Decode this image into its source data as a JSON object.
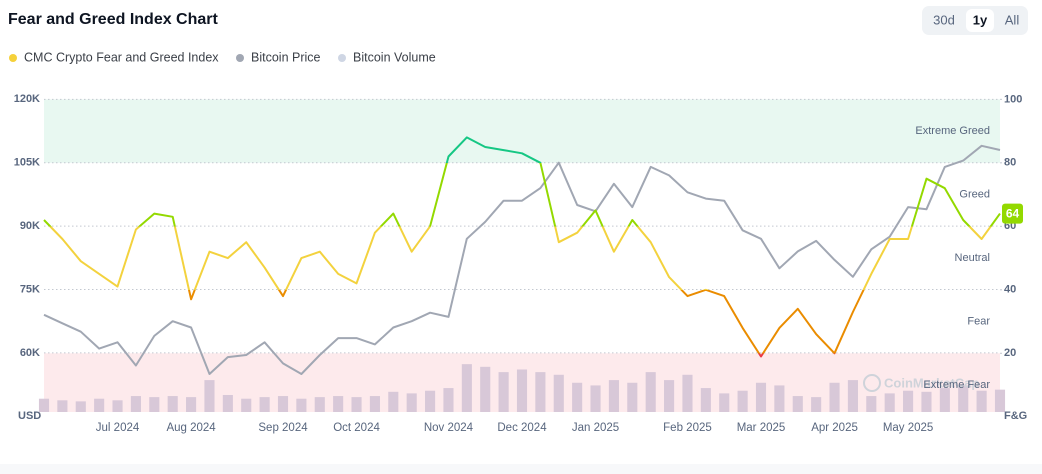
{
  "title": "Fear and Greed Index Chart",
  "buttons": [
    "30d",
    "1y",
    "All"
  ],
  "active_button": "1y",
  "chart_data": {
    "type": "line",
    "categories": [
      null,
      null,
      null,
      null,
      "Jul 2024",
      null,
      null,
      null,
      "Aug 2024",
      null,
      null,
      null,
      null,
      "Sep 2024",
      null,
      null,
      null,
      "Oct 2024",
      null,
      null,
      null,
      null,
      "Nov 2024",
      null,
      null,
      null,
      "Dec 2024",
      null,
      null,
      null,
      "Jan 2025",
      null,
      null,
      null,
      null,
      "Feb 2025",
      null,
      null,
      null,
      "Mar 2025",
      null,
      null,
      null,
      "Apr 2025",
      null,
      null,
      null,
      "May 2025",
      null,
      null,
      null,
      null,
      null
    ],
    "series": [
      {
        "name": "CMC Crypto Fear and Greed Index",
        "color": "#f5d13a",
        "axis": "y2",
        "values": [
          62,
          56,
          49,
          45,
          41,
          59,
          64,
          63,
          37,
          52,
          50,
          55,
          47,
          38,
          50,
          52,
          45,
          42,
          58,
          64,
          52,
          60,
          82,
          88,
          85,
          84,
          83,
          80,
          55,
          58,
          65,
          52,
          62,
          55,
          44,
          38,
          40,
          38,
          28,
          19,
          28,
          34,
          26,
          20,
          33,
          45,
          56,
          56,
          75,
          72,
          62,
          56,
          64
        ]
      },
      {
        "name": "Bitcoin Price",
        "color": "#a1a7b3",
        "axis": "y",
        "values": [
          69000,
          67000,
          65000,
          61000,
          62500,
          57000,
          64000,
          67500,
          66000,
          55000,
          59000,
          59500,
          62500,
          57500,
          55000,
          59500,
          63500,
          63500,
          62000,
          66000,
          67500,
          69500,
          68500,
          87000,
          91000,
          96000,
          96000,
          99000,
          105000,
          95000,
          93500,
          100000,
          94500,
          104000,
          102000,
          98000,
          96500,
          96000,
          89000,
          87000,
          80000,
          84000,
          86500,
          82000,
          78000,
          84500,
          87500,
          94500,
          94000,
          104000,
          105500,
          109000,
          108000
        ]
      },
      {
        "name": "Bitcoin Volume",
        "color": "#cfd6e4",
        "bar_color": "#d8c8d8",
        "axis": "y3",
        "values": [
          25,
          22,
          20,
          25,
          22,
          30,
          28,
          30,
          28,
          60,
          32,
          25,
          28,
          30,
          25,
          28,
          30,
          28,
          30,
          38,
          35,
          40,
          45,
          90,
          85,
          75,
          80,
          75,
          70,
          55,
          50,
          60,
          55,
          75,
          60,
          70,
          45,
          35,
          40,
          55,
          50,
          30,
          28,
          55,
          60,
          30,
          35,
          40,
          38,
          45,
          50,
          40,
          42
        ]
      }
    ],
    "ylim": [
      46000,
      121500
    ],
    "yticks": [
      {
        "value": 60000,
        "label": "60K"
      },
      {
        "value": 75000,
        "label": "75K"
      },
      {
        "value": 90000,
        "label": "90K"
      },
      {
        "value": 105000,
        "label": "105K"
      },
      {
        "value": 120000,
        "label": "120K"
      }
    ],
    "y2lim": [
      1.5,
      102
    ],
    "y2ticks": [
      20,
      40,
      60,
      80,
      100
    ],
    "y3lim": [
      0,
      600
    ],
    "y_label": "USD",
    "y2_label": "F&G",
    "grid": true,
    "zones": [
      {
        "name": "Extreme Fear",
        "range": [
          0,
          20
        ],
        "color": "#ea3943",
        "background": "#fdeaec"
      },
      {
        "name": "Fear",
        "range": [
          20,
          40
        ],
        "color": "#ea8c00"
      },
      {
        "name": "Neutral",
        "range": [
          40,
          60
        ],
        "color": "#f3d23e"
      },
      {
        "name": "Greed",
        "range": [
          60,
          80
        ],
        "color": "#93d900"
      },
      {
        "name": "Extreme Greed",
        "range": [
          80,
          100
        ],
        "color": "#16c784",
        "background": "#e8f8f1"
      }
    ],
    "watermark": "CoinMarketCap"
  }
}
